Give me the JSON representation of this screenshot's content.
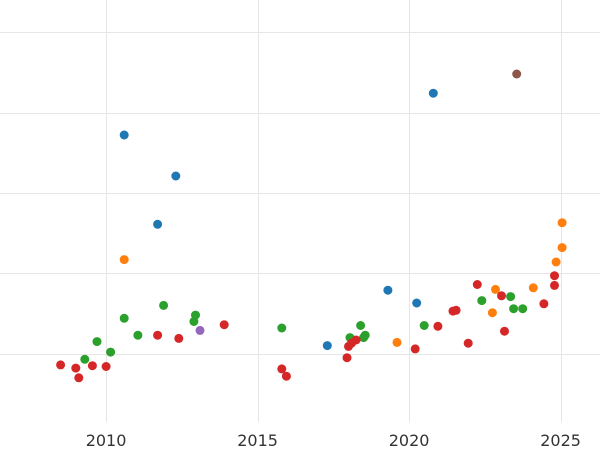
{
  "chart_data": {
    "type": "scatter",
    "title": "",
    "xlabel": "",
    "ylabel": "",
    "xlim": [
      2006.5,
      2026.3
    ],
    "ylim": [
      -0.85,
      4.4
    ],
    "x_ticks": [
      2010,
      2015,
      2020,
      2025
    ],
    "x_tick_labels": [
      "2010",
      "2015",
      "2020",
      "2025"
    ],
    "y_gridlines": [
      0,
      1,
      2,
      3,
      4
    ],
    "grid": true,
    "legend": "none",
    "series": [
      {
        "color": "#1f77b4",
        "points": [
          {
            "x": 2010.6,
            "y": 2.72
          },
          {
            "x": 2011.7,
            "y": 1.61
          },
          {
            "x": 2012.3,
            "y": 2.21
          },
          {
            "x": 2017.3,
            "y": 0.1
          },
          {
            "x": 2019.3,
            "y": 0.79
          },
          {
            "x": 2020.25,
            "y": 0.63
          },
          {
            "x": 2020.8,
            "y": 3.24
          }
        ]
      },
      {
        "color": "#ff7f0e",
        "points": [
          {
            "x": 2010.6,
            "y": 1.17
          },
          {
            "x": 2019.6,
            "y": 0.14
          },
          {
            "x": 2022.75,
            "y": 0.51
          },
          {
            "x": 2022.85,
            "y": 0.8
          },
          {
            "x": 2024.1,
            "y": 0.82
          },
          {
            "x": 2024.85,
            "y": 1.14
          },
          {
            "x": 2025.05,
            "y": 1.32
          },
          {
            "x": 2025.05,
            "y": 1.63
          }
        ]
      },
      {
        "color": "#2ca02c",
        "points": [
          {
            "x": 2009.3,
            "y": -0.07
          },
          {
            "x": 2009.7,
            "y": 0.15
          },
          {
            "x": 2010.15,
            "y": 0.02
          },
          {
            "x": 2010.6,
            "y": 0.44
          },
          {
            "x": 2011.05,
            "y": 0.23
          },
          {
            "x": 2011.9,
            "y": 0.6
          },
          {
            "x": 2012.9,
            "y": 0.4
          },
          {
            "x": 2012.95,
            "y": 0.48
          },
          {
            "x": 2015.8,
            "y": 0.32
          },
          {
            "x": 2018.05,
            "y": 0.2
          },
          {
            "x": 2018.4,
            "y": 0.35
          },
          {
            "x": 2018.55,
            "y": 0.23
          },
          {
            "x": 2018.5,
            "y": 0.2
          },
          {
            "x": 2020.5,
            "y": 0.35
          },
          {
            "x": 2022.4,
            "y": 0.66
          },
          {
            "x": 2023.35,
            "y": 0.71
          },
          {
            "x": 2023.45,
            "y": 0.56
          },
          {
            "x": 2023.75,
            "y": 0.56
          }
        ]
      },
      {
        "color": "#d62728",
        "points": [
          {
            "x": 2008.5,
            "y": -0.14
          },
          {
            "x": 2009.0,
            "y": -0.18
          },
          {
            "x": 2009.1,
            "y": -0.3
          },
          {
            "x": 2009.55,
            "y": -0.15
          },
          {
            "x": 2010.0,
            "y": -0.16
          },
          {
            "x": 2011.7,
            "y": 0.23
          },
          {
            "x": 2012.4,
            "y": 0.19
          },
          {
            "x": 2013.9,
            "y": 0.36
          },
          {
            "x": 2015.8,
            "y": -0.19
          },
          {
            "x": 2015.95,
            "y": -0.28
          },
          {
            "x": 2017.95,
            "y": -0.05
          },
          {
            "x": 2018.0,
            "y": 0.09
          },
          {
            "x": 2018.1,
            "y": 0.13
          },
          {
            "x": 2018.25,
            "y": 0.17
          },
          {
            "x": 2020.2,
            "y": 0.06
          },
          {
            "x": 2020.95,
            "y": 0.34
          },
          {
            "x": 2021.45,
            "y": 0.53
          },
          {
            "x": 2021.55,
            "y": 0.54
          },
          {
            "x": 2021.95,
            "y": 0.13
          },
          {
            "x": 2022.25,
            "y": 0.86
          },
          {
            "x": 2023.05,
            "y": 0.72
          },
          {
            "x": 2023.15,
            "y": 0.28
          },
          {
            "x": 2024.45,
            "y": 0.62
          },
          {
            "x": 2024.8,
            "y": 0.85
          },
          {
            "x": 2024.8,
            "y": 0.97
          }
        ]
      },
      {
        "color": "#9467bd",
        "points": [
          {
            "x": 2013.1,
            "y": 0.29
          }
        ]
      },
      {
        "color": "#8c564b",
        "points": [
          {
            "x": 2023.55,
            "y": 3.48
          }
        ]
      }
    ]
  }
}
